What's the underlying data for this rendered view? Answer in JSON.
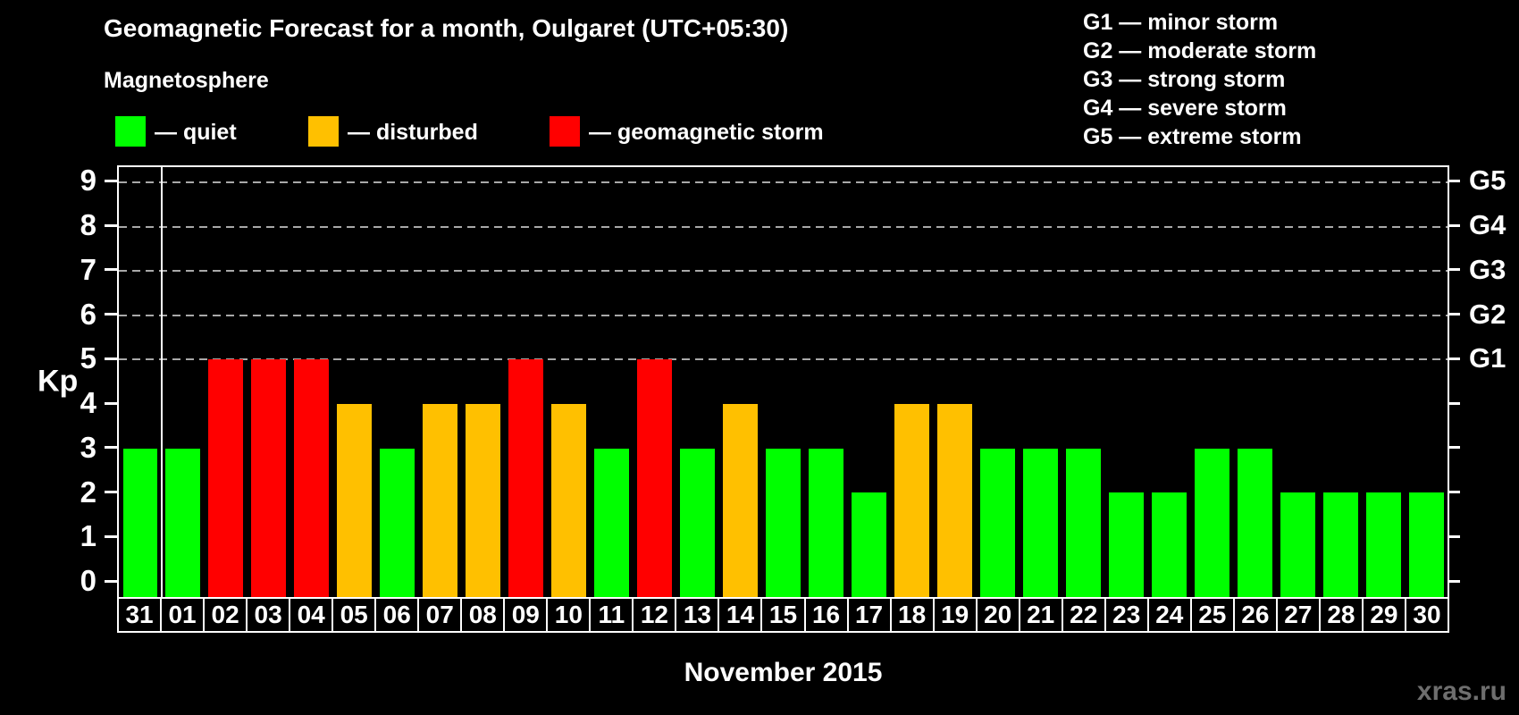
{
  "title": "Geomagnetic Forecast for a month, Oulgaret (UTC+05:30)",
  "magnetosphere_legend": {
    "title": "Magnetosphere",
    "items": [
      {
        "name": "quiet",
        "label": "— quiet",
        "color": "#00ff00"
      },
      {
        "name": "disturbed",
        "label": "— disturbed",
        "color": "#ffc000"
      },
      {
        "name": "storm",
        "label": "— geomagnetic storm",
        "color": "#ff0000"
      }
    ]
  },
  "storm_scale_legend": {
    "items": [
      "G1 — minor storm",
      "G2 — moderate storm",
      "G3 — strong storm",
      "G4 — severe storm",
      "G5 — extreme storm"
    ]
  },
  "watermark": "xras.ru",
  "chart_data": {
    "type": "bar",
    "title": "Geomagnetic Forecast for a month, Oulgaret (UTC+05:30)",
    "xlabel": "November 2015",
    "ylabel": "Kp",
    "ylim": [
      0,
      9
    ],
    "grid": "horizontal dashed gridlines at Kp 5,6,7,8,9",
    "legend_position": "top",
    "kp_ticks": [
      0,
      1,
      2,
      3,
      4,
      5,
      6,
      7,
      8,
      9
    ],
    "g_scale": [
      {
        "kp": 5,
        "label": "G1"
      },
      {
        "kp": 6,
        "label": "G2"
      },
      {
        "kp": 7,
        "label": "G3"
      },
      {
        "kp": 8,
        "label": "G4"
      },
      {
        "kp": 9,
        "label": "G5"
      }
    ],
    "categories": [
      "31",
      "01",
      "02",
      "03",
      "04",
      "05",
      "06",
      "07",
      "08",
      "09",
      "10",
      "11",
      "12",
      "13",
      "14",
      "15",
      "16",
      "17",
      "18",
      "19",
      "20",
      "21",
      "22",
      "23",
      "24",
      "25",
      "26",
      "27",
      "28",
      "29",
      "30"
    ],
    "values": [
      3,
      3,
      5,
      5,
      5,
      4,
      3,
      4,
      4,
      5,
      4,
      3,
      5,
      3,
      4,
      3,
      3,
      2,
      4,
      4,
      3,
      3,
      3,
      2,
      2,
      3,
      3,
      2,
      2,
      2,
      2
    ],
    "status": [
      "quiet",
      "quiet",
      "storm",
      "storm",
      "storm",
      "disturbed",
      "quiet",
      "disturbed",
      "disturbed",
      "storm",
      "disturbed",
      "quiet",
      "storm",
      "quiet",
      "disturbed",
      "quiet",
      "quiet",
      "quiet",
      "disturbed",
      "disturbed",
      "quiet",
      "quiet",
      "quiet",
      "quiet",
      "quiet",
      "quiet",
      "quiet",
      "quiet",
      "quiet",
      "quiet",
      "quiet"
    ],
    "colors": {
      "quiet": "#00ff00",
      "disturbed": "#ffc000",
      "storm": "#ff0000"
    },
    "month_separator_after_index": 0
  }
}
